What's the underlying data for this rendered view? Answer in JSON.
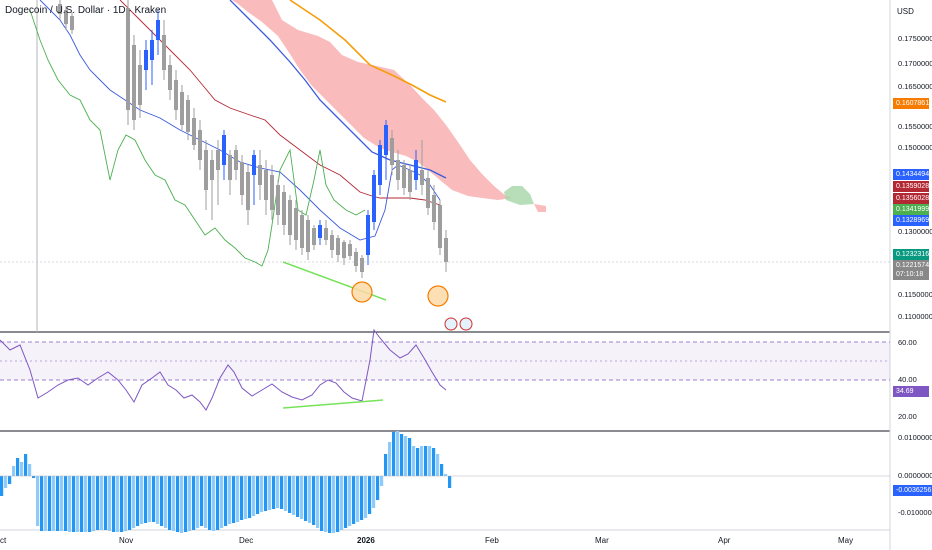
{
  "header": {
    "title": "Dogecoin / U.S. Dollar · 1D · Kraken",
    "currency": "USD"
  },
  "price_axis": {
    "ticks": [
      "0.1750000",
      "0.1700000",
      "0.1650000",
      "0.1550000",
      "0.1500000",
      "0.1300000",
      "0.1150000",
      "0.1100000"
    ],
    "tags": [
      {
        "label": "0.1607861",
        "color": "#f57c00"
      },
      {
        "label": "0.1434494",
        "color": "#2962ff"
      },
      {
        "label": "0.1359028",
        "color": "#b22833"
      },
      {
        "label": "0.1356028",
        "color": "#b22833"
      },
      {
        "label": "0.1341999",
        "color": "#4caf50"
      },
      {
        "label": "0.1328969",
        "color": "#2962ff"
      },
      {
        "label": "0.1232316",
        "color": "#089981"
      },
      {
        "label": "0.1221574",
        "color": "#888888"
      },
      {
        "label": "07:10:18",
        "color": "#888888"
      }
    ]
  },
  "rsi_axis": {
    "ticks": [
      "60.00",
      "40.00",
      "20.00"
    ],
    "value_tag": {
      "label": "34.69",
      "color": "#7e57c2"
    }
  },
  "macd_axis": {
    "ticks": [
      "0.0100000",
      "0.0000000",
      "-0.0100000"
    ],
    "value_tag": {
      "label": "-0.0036256",
      "color": "#2962ff"
    }
  },
  "time_axis": {
    "labels": [
      "ct",
      "Nov",
      "Dec",
      "2026",
      "Feb",
      "Mar",
      "Apr",
      "May"
    ]
  },
  "colors": {
    "up": "#2962ff",
    "down": "#9e9e9e",
    "kumo_bear": "#f7a4a4",
    "kumo_bull": "#a5d6a7",
    "orange": "#f57c00",
    "rsi": "#7e57c2",
    "divergence": "#76e35a"
  },
  "icons": [
    "usa-flag-event-icon",
    "usa-flag-event-icon"
  ]
}
